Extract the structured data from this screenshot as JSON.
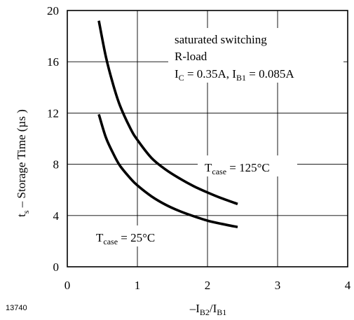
{
  "chart_data": {
    "type": "line",
    "x_ticks": [
      "0",
      "1",
      "2",
      "3",
      "4"
    ],
    "y_ticks": [
      "0",
      "4",
      "8",
      "12",
      "16",
      "20"
    ],
    "xlim": [
      0,
      4
    ],
    "ylim": [
      0,
      20
    ],
    "grid": true,
    "ylabel": {
      "main": "t",
      "sub": "s",
      "rest": " – Storage Time (µs )"
    },
    "xlabel": {
      "part1": "–I",
      "sub1": "B2",
      "part2": "/I",
      "sub2": "B1"
    },
    "annotation": {
      "line1": "saturated switching",
      "line2": "R-load",
      "line3": {
        "a": "I",
        "a_sub": "C",
        "b": " = 0.35A, I",
        "b_sub": "B1",
        "c": " = 0.085A"
      }
    },
    "figure_id": "13740",
    "series": [
      {
        "label": {
          "main": "T",
          "sub": "case",
          "rest": " = 125°C"
        },
        "x": [
          0.45,
          0.55,
          0.65,
          0.75,
          0.9,
          1.0,
          1.2,
          1.4,
          1.6,
          1.8,
          2.0,
          2.2,
          2.43
        ],
        "values": [
          19.2,
          16.4,
          14.3,
          12.6,
          10.8,
          9.9,
          8.5,
          7.6,
          6.9,
          6.3,
          5.8,
          5.35,
          4.9
        ]
      },
      {
        "label": {
          "main": "T",
          "sub": "case",
          "rest": " = 25°C"
        },
        "x": [
          0.45,
          0.55,
          0.65,
          0.75,
          0.9,
          1.0,
          1.2,
          1.4,
          1.6,
          1.8,
          2.0,
          2.2,
          2.43
        ],
        "values": [
          11.9,
          10.1,
          8.9,
          7.9,
          6.9,
          6.35,
          5.5,
          4.85,
          4.35,
          3.95,
          3.6,
          3.35,
          3.1
        ]
      }
    ]
  }
}
